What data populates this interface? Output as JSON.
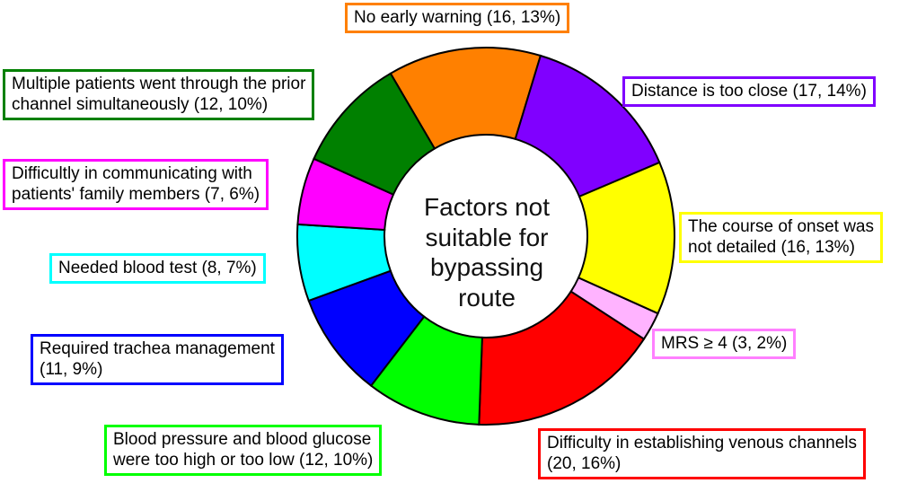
{
  "chart_data": {
    "type": "pie",
    "variant": "donut",
    "center_label": "Factors not suitable for bypassing route",
    "slices": [
      {
        "label": "No early warning (16, 13%)",
        "value": 16,
        "percent": 13,
        "color": "#ff8000"
      },
      {
        "label": "Distance is too close (17, 14%)",
        "value": 17,
        "percent": 14,
        "color": "#8000ff"
      },
      {
        "label": "The course of onset was not detailed (16, 13%)",
        "value": 16,
        "percent": 13,
        "color": "#ffff00"
      },
      {
        "label": "MRS ≥ 4 (3, 2%)",
        "value": 3,
        "percent": 2,
        "color": "#ffb3ff"
      },
      {
        "label": "Difficulty in establishing venous channels (20, 16%)",
        "value": 20,
        "percent": 16,
        "color": "#ff0000"
      },
      {
        "label": "Blood pressure and blood glucose were too high or too low (12, 10%)",
        "value": 12,
        "percent": 10,
        "color": "#00ff00"
      },
      {
        "label": "Required trachea management (11, 9%)",
        "value": 11,
        "percent": 9,
        "color": "#0000ff"
      },
      {
        "label": "Needed blood test (8, 7%)",
        "value": 8,
        "percent": 7,
        "color": "#00ffff"
      },
      {
        "label": "Difficultly in communicating with patients' family members (7, 6%)",
        "value": 7,
        "percent": 6,
        "color": "#ff00ff"
      },
      {
        "label": "Multiple patients went through the prior channel simultaneously (12, 10%)",
        "value": 12,
        "percent": 10,
        "color": "#008000"
      }
    ],
    "label_border_colors": [
      "#ff8000",
      "#8000ff",
      "#ffff00",
      "#ff80ff",
      "#ff0000",
      "#00ff00",
      "#0000ff",
      "#00ffff",
      "#ff00ff",
      "#008000"
    ]
  },
  "labels": {
    "no_early_warning": "No early warning (16, 13%)",
    "distance_too_close": "Distance is too close (17, 14%)",
    "course_of_onset_1": "The course of onset was",
    "course_of_onset_2": "not detailed (16, 13%)",
    "mrs": "MRS ≥ 4 (3, 2%)",
    "venous_1": "Difficulty in establishing venous channels",
    "venous_2": "(20, 16%)",
    "bp_glucose_1": "Blood pressure and blood glucose",
    "bp_glucose_2": "were too high or too low (12, 10%)",
    "trachea_1": "Required trachea management",
    "trachea_2": "(11, 9%)",
    "blood_test": "Needed blood test (8, 7%)",
    "communicating_1": "Difficultly in communicating with",
    "communicating_2": "patients' family members (7, 6%)",
    "multiple_1": "Multiple patients went through the prior",
    "multiple_2": "channel simultaneously (12, 10%)",
    "center_1": "Factors not",
    "center_2": "suitable for",
    "center_3": "bypassing",
    "center_4": "route"
  }
}
